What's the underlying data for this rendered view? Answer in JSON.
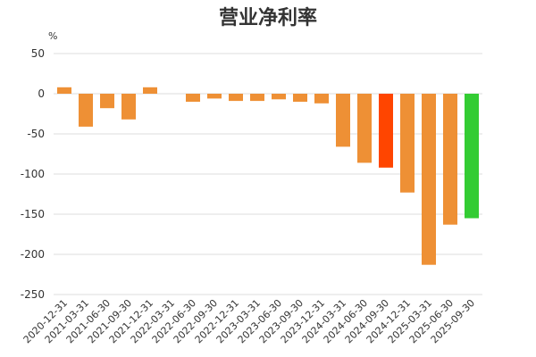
{
  "chart_data": {
    "type": "bar",
    "title": "营业净利率",
    "ylabel": "%",
    "xlabel": "",
    "ylim": [
      -250,
      50
    ],
    "yticks": [
      50,
      0,
      -50,
      -100,
      -150,
      -200,
      -250
    ],
    "grid": true,
    "categories": [
      "2020-12-31",
      "2021-03-31",
      "2021-06-30",
      "2021-09-30",
      "2021-12-31",
      "2022-03-31",
      "2022-06-30",
      "2022-09-30",
      "2022-12-31",
      "2023-03-31",
      "2023-06-30",
      "2023-09-30",
      "2023-12-31",
      "2024-03-31",
      "2024-06-30",
      "2024-09-30",
      "2024-12-31",
      "2025-03-31",
      "2025-06-30",
      "2025-09-30"
    ],
    "values": [
      8,
      -41,
      -18,
      -32,
      8,
      0,
      -10,
      -6,
      -9,
      -9,
      -7,
      -10,
      -12,
      -66,
      -86,
      -92,
      -123,
      -213,
      -163,
      -155
    ],
    "colors": {
      "default": "#ee9035",
      "highlight": "#ff4500",
      "latest": "#33cc33"
    },
    "bar_colors": [
      "default",
      "default",
      "default",
      "default",
      "default",
      "default",
      "default",
      "default",
      "default",
      "default",
      "default",
      "default",
      "default",
      "default",
      "default",
      "highlight",
      "default",
      "default",
      "default",
      "latest"
    ]
  }
}
